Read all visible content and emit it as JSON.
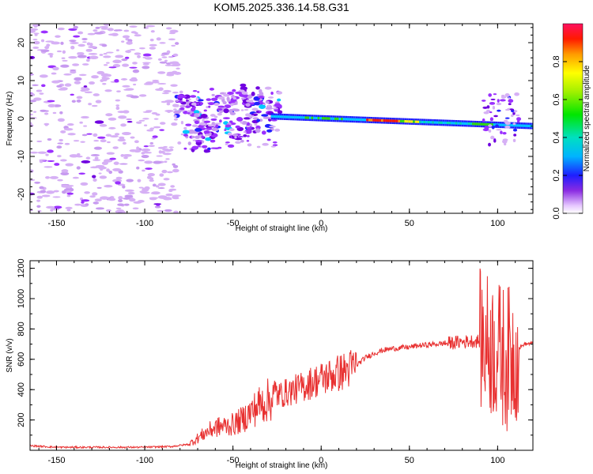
{
  "title": "KOM5.2025.336.14.58.G31",
  "chart_data": [
    {
      "type": "heatmap",
      "xlabel": "Height of straight line (km)",
      "ylabel": "Frequency (Hz)",
      "xlim": [
        -165,
        120
      ],
      "ylim": [
        -25,
        25
      ],
      "xticks": [
        -150,
        -100,
        -50,
        0,
        50,
        100
      ],
      "yticks": [
        -20,
        -10,
        0,
        10,
        20
      ],
      "colorbar": {
        "label": "Normalized spectral amplitude",
        "range": [
          0,
          1
        ],
        "ticks": [
          0.0,
          0.2,
          0.4,
          0.6,
          0.8
        ],
        "tick_labels": [
          "0.0",
          "0.2",
          "0.4",
          "0.6",
          "0.8"
        ]
      },
      "features": {
        "noise_region_x": [
          -165,
          -83
        ],
        "scattered_region_x": [
          -83,
          -25
        ],
        "strong_line": {
          "x": [
            -25,
            120
          ],
          "freq_hz": [
            0.5,
            -2
          ],
          "peak_amplitude": 1.0
        },
        "burst_near_x": 100
      }
    },
    {
      "type": "line",
      "xlabel": "Height of straight line (km)",
      "ylabel": "SNR (v/v)",
      "xlim": [
        -165,
        120
      ],
      "ylim": [
        0,
        1250
      ],
      "xticks": [
        -150,
        -100,
        -50,
        0,
        50,
        100
      ],
      "yticks": [
        200,
        400,
        600,
        800,
        1000,
        1200
      ],
      "color": "#e83030",
      "series": [
        {
          "name": "SNR",
          "x": [
            -165,
            -150,
            -120,
            -100,
            -85,
            -75,
            -70,
            -65,
            -60,
            -55,
            -50,
            -45,
            -40,
            -35,
            -30,
            -25,
            -20,
            -15,
            -10,
            -5,
            0,
            5,
            10,
            15,
            20,
            25,
            30,
            35,
            40,
            45,
            50,
            55,
            60,
            65,
            70,
            75,
            80,
            85,
            90,
            95,
            100,
            105,
            110,
            115,
            120
          ],
          "y": [
            30,
            20,
            20,
            20,
            25,
            40,
            80,
            120,
            150,
            160,
            170,
            200,
            250,
            300,
            330,
            360,
            380,
            400,
            420,
            450,
            470,
            490,
            510,
            530,
            560,
            610,
            640,
            660,
            670,
            675,
            680,
            690,
            695,
            700,
            705,
            710,
            715,
            720,
            720,
            700,
            650,
            600,
            650,
            700,
            705
          ]
        }
      ]
    }
  ]
}
